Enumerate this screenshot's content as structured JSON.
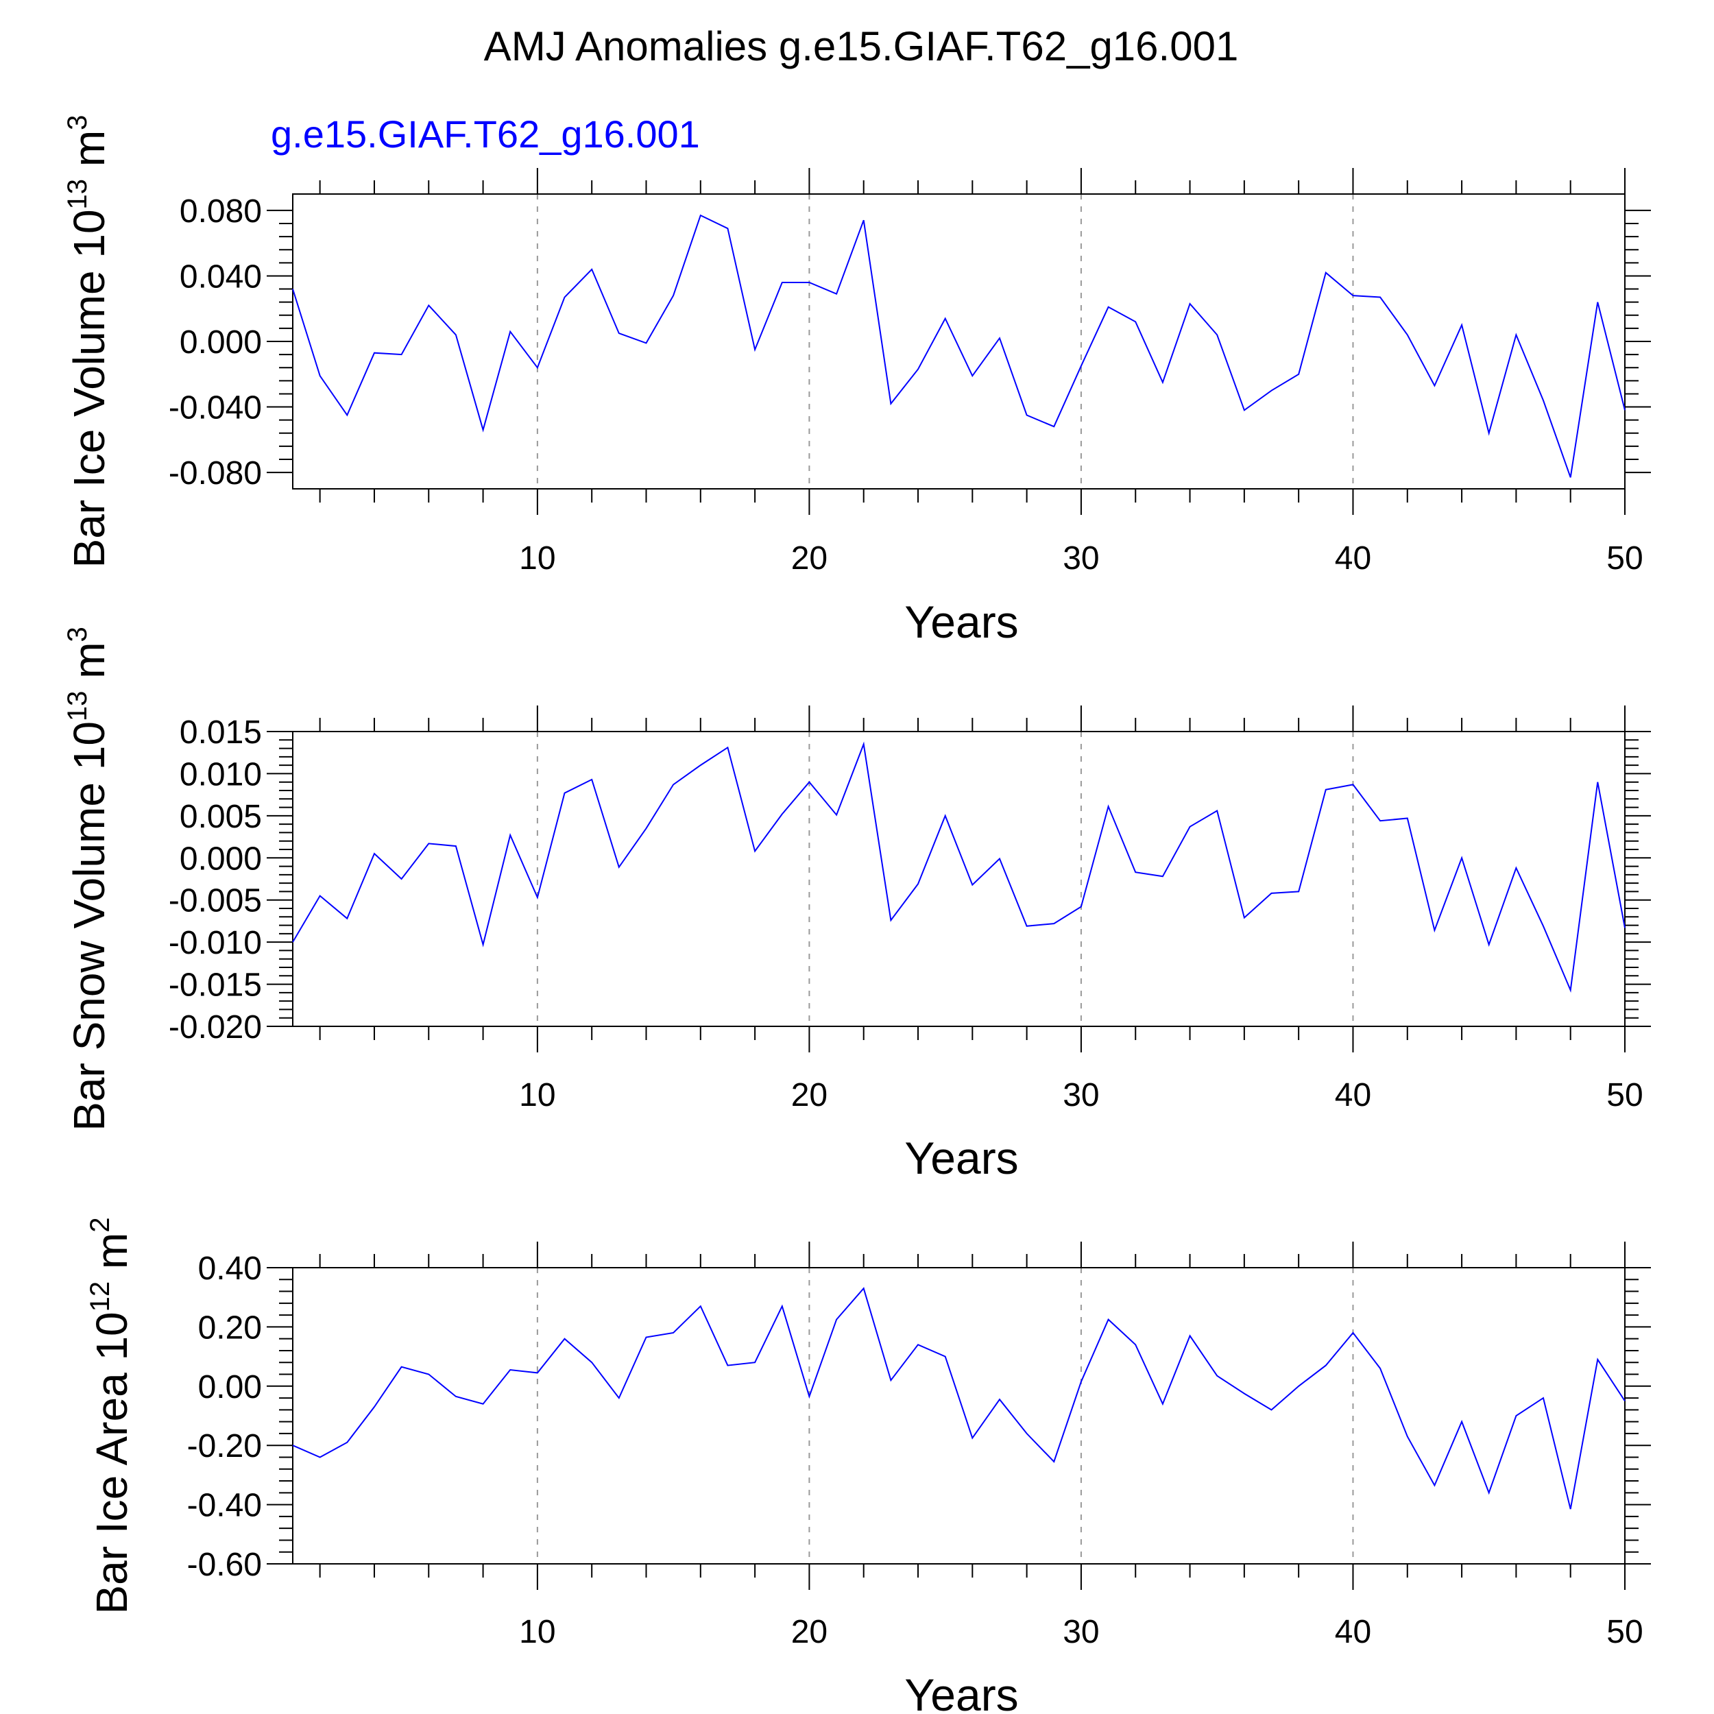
{
  "title": "AMJ Anomalies g.e15.GIAF.T62_g16.001",
  "colors": {
    "series": "#0000ff",
    "axis": "#000000",
    "grid": "#999999"
  },
  "chart_data": [
    {
      "type": "line",
      "subtitle": "g.e15.GIAF.T62_g16.001",
      "ylabel": "Bar Ice Volume 10",
      "ylabel_exp": "13",
      "ylabel_unit": " m",
      "ylabel_unit_exp": "3",
      "xlabel": "Years",
      "xlim": [
        1,
        50
      ],
      "ylim": [
        -0.09,
        0.09
      ],
      "xticks": [
        10,
        20,
        30,
        40,
        50
      ],
      "yticks": [
        -0.08,
        -0.04,
        0.0,
        0.04,
        0.08
      ],
      "ytick_labels": [
        "-0.080",
        "-0.040",
        "0.000",
        "0.040",
        "0.080"
      ],
      "grid_x": true,
      "series": [
        {
          "values": [
            0.032,
            -0.021,
            -0.045,
            -0.007,
            -0.008,
            0.022,
            0.004,
            -0.054,
            0.006,
            -0.016,
            0.027,
            0.044,
            0.005,
            -0.001,
            0.028,
            0.077,
            0.069,
            -0.005,
            0.036,
            0.036,
            0.029,
            0.074,
            -0.038,
            -0.017,
            0.014,
            -0.021,
            0.002,
            -0.045,
            -0.052,
            -0.015,
            0.021,
            0.012,
            -0.025,
            0.023,
            0.004,
            -0.042,
            -0.03,
            -0.02,
            0.042,
            0.028,
            0.027,
            0.004,
            -0.027,
            0.01,
            -0.056,
            0.004,
            -0.036,
            -0.083,
            0.024,
            -0.042
          ]
        }
      ]
    },
    {
      "type": "line",
      "ylabel": "Bar Snow Volume 10",
      "ylabel_exp": "13",
      "ylabel_unit": " m",
      "ylabel_unit_exp": "3",
      "xlabel": "Years",
      "xlim": [
        1,
        50
      ],
      "ylim": [
        -0.02,
        0.015
      ],
      "xticks": [
        10,
        20,
        30,
        40,
        50
      ],
      "yticks": [
        -0.02,
        -0.015,
        -0.01,
        -0.005,
        0.0,
        0.005,
        0.01,
        0.015
      ],
      "ytick_labels": [
        "-0.020",
        "-0.015",
        "-0.010",
        "-0.005",
        "0.000",
        "0.005",
        "0.010",
        "0.015"
      ],
      "grid_x": true,
      "series": [
        {
          "values": [
            -0.01,
            -0.0045,
            -0.0072,
            0.0005,
            -0.0025,
            0.0017,
            0.0014,
            -0.0103,
            0.0027,
            -0.0047,
            0.0077,
            0.0093,
            -0.0011,
            0.0035,
            0.0087,
            0.011,
            0.0131,
            0.0008,
            0.0052,
            0.009,
            0.0051,
            0.0135,
            -0.0074,
            -0.0031,
            0.005,
            -0.0032,
            -0.0001,
            -0.0081,
            -0.0078,
            -0.0058,
            0.0061,
            -0.0017,
            -0.0022,
            0.0037,
            0.0056,
            -0.0071,
            -0.0042,
            -0.004,
            0.0081,
            0.0087,
            0.0044,
            0.0047,
            -0.0086,
            0.0,
            -0.0103,
            -0.0012,
            -0.0081,
            -0.0157,
            0.009,
            -0.0083
          ]
        }
      ]
    },
    {
      "type": "line",
      "ylabel": "Bar Ice Area 10",
      "ylabel_exp": "12",
      "ylabel_unit": " m",
      "ylabel_unit_exp": "2",
      "xlabel": "Years",
      "xlim": [
        1,
        50
      ],
      "ylim": [
        -0.6,
        0.4
      ],
      "xticks": [
        10,
        20,
        30,
        40,
        50
      ],
      "yticks": [
        -0.6,
        -0.4,
        -0.2,
        0.0,
        0.2,
        0.4
      ],
      "ytick_labels": [
        "-0.60",
        "-0.40",
        "-0.20",
        "0.00",
        "0.20",
        "0.40"
      ],
      "grid_x": true,
      "series": [
        {
          "values": [
            -0.2,
            -0.24,
            -0.19,
            -0.07,
            0.065,
            0.04,
            -0.035,
            -0.06,
            0.055,
            0.045,
            0.16,
            0.08,
            -0.04,
            0.165,
            0.18,
            0.27,
            0.07,
            0.08,
            0.27,
            -0.035,
            0.225,
            0.33,
            0.02,
            0.14,
            0.1,
            -0.175,
            -0.045,
            -0.16,
            -0.255,
            0.015,
            0.225,
            0.14,
            -0.06,
            0.17,
            0.035,
            -0.025,
            -0.08,
            0.0,
            0.07,
            0.18,
            0.06,
            -0.17,
            -0.335,
            -0.12,
            -0.36,
            -0.1,
            -0.04,
            -0.415,
            0.09,
            -0.05
          ]
        }
      ]
    }
  ]
}
